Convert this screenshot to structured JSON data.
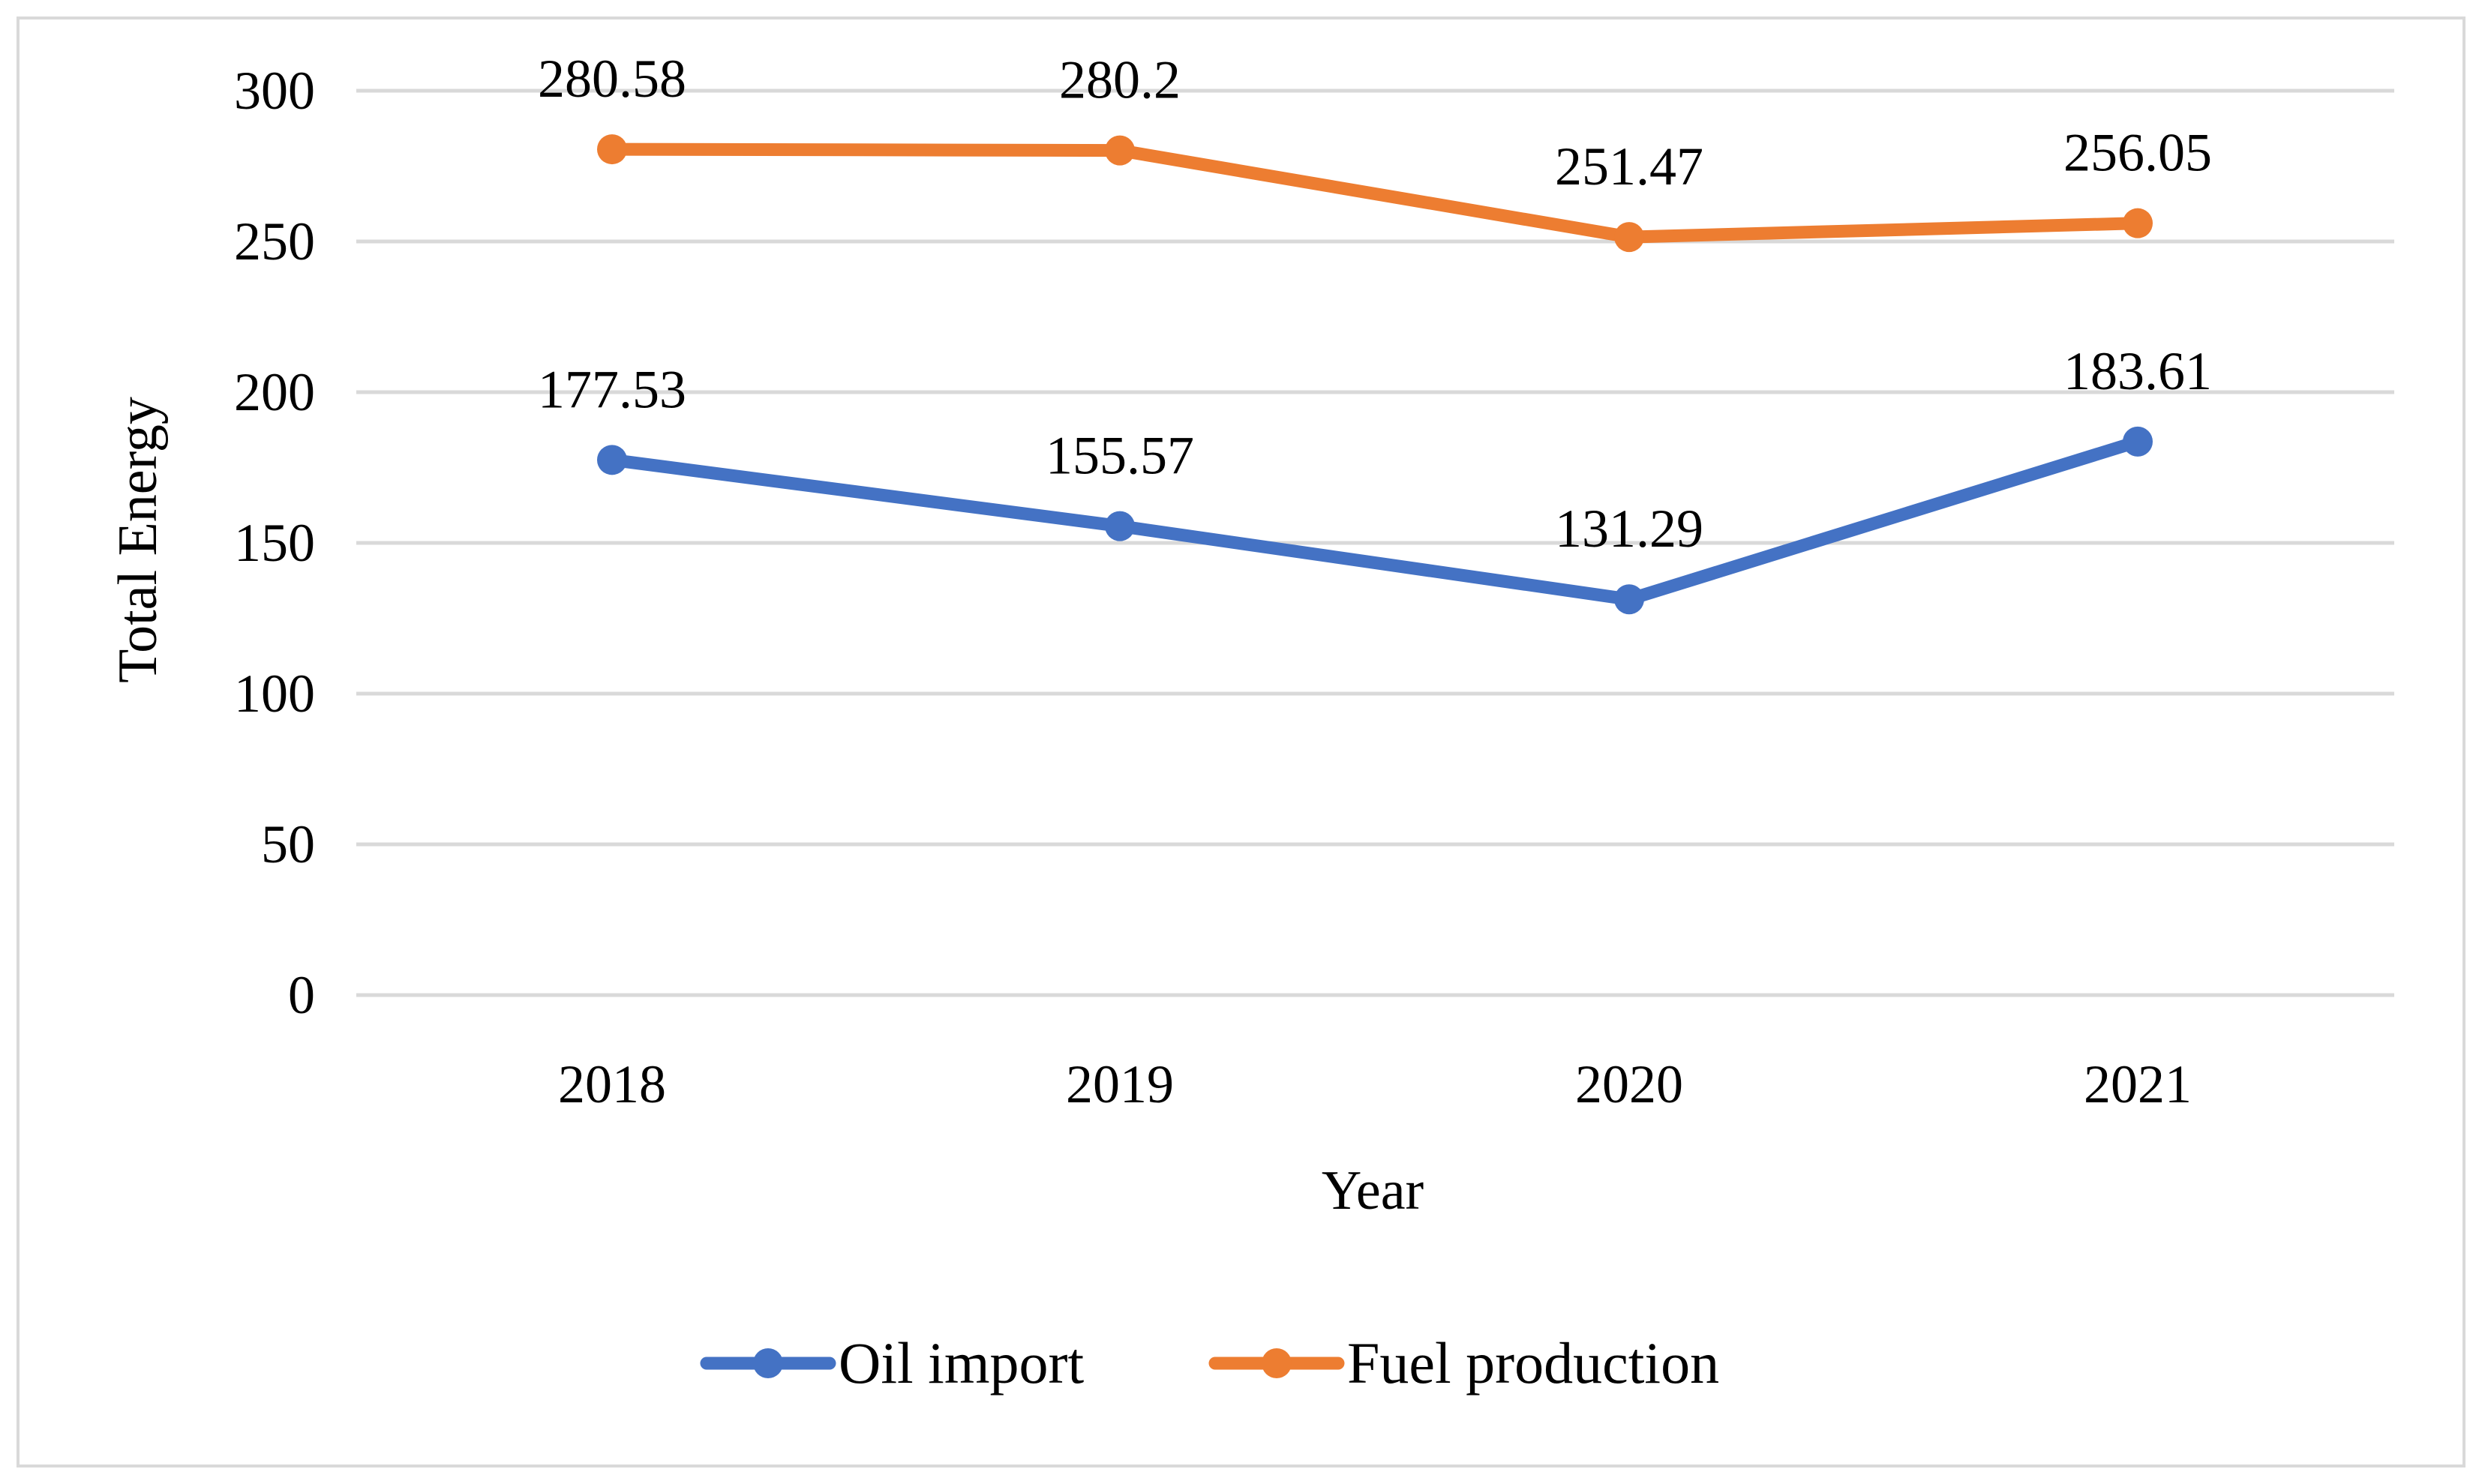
{
  "chart_data": {
    "type": "line",
    "title": "",
    "xlabel": "Year",
    "ylabel": "Total Energy",
    "categories": [
      "2018",
      "2019",
      "2020",
      "2021"
    ],
    "ylim": [
      0,
      300
    ],
    "yticks": [
      0,
      50,
      100,
      150,
      200,
      250,
      300
    ],
    "grid": true,
    "legend_position": "bottom",
    "series": [
      {
        "name": "Oil import",
        "color": "#4472c4",
        "values": [
          177.53,
          155.57,
          131.29,
          183.61
        ],
        "labels": [
          "177.53",
          "155.57",
          "131.29",
          "183.61"
        ]
      },
      {
        "name": "Fuel production",
        "color": "#ed7d31",
        "values": [
          280.58,
          280.2,
          251.47,
          256.05
        ],
        "labels": [
          "280.58",
          "280.2",
          "251.47",
          "256.05"
        ]
      }
    ]
  }
}
